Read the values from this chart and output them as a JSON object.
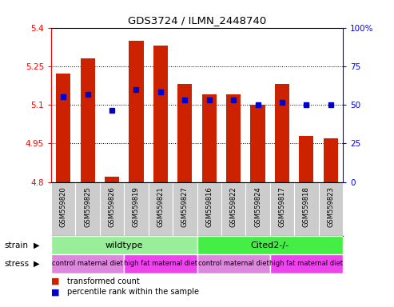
{
  "title": "GDS3724 / ILMN_2448740",
  "samples": [
    "GSM559820",
    "GSM559825",
    "GSM559826",
    "GSM559819",
    "GSM559821",
    "GSM559827",
    "GSM559816",
    "GSM559822",
    "GSM559824",
    "GSM559817",
    "GSM559818",
    "GSM559823"
  ],
  "bar_values": [
    5.22,
    5.28,
    4.82,
    5.35,
    5.33,
    5.18,
    5.14,
    5.14,
    5.1,
    5.18,
    4.98,
    4.97
  ],
  "percentile_values": [
    5.13,
    5.14,
    5.08,
    5.16,
    5.15,
    5.12,
    5.12,
    5.12,
    5.1,
    5.11,
    5.1,
    5.1
  ],
  "ylim": [
    4.8,
    5.4
  ],
  "y2lim": [
    0,
    100
  ],
  "yticks": [
    4.8,
    4.95,
    5.1,
    5.25,
    5.4
  ],
  "y2ticks": [
    0,
    25,
    50,
    75,
    100
  ],
  "bar_color": "#cc2200",
  "percentile_color": "#0000cc",
  "strain_labels": [
    {
      "label": "wildtype",
      "start": 0,
      "end": 6,
      "color": "#99ee99"
    },
    {
      "label": "Cited2-/-",
      "start": 6,
      "end": 12,
      "color": "#44ee44"
    }
  ],
  "stress_groups": [
    {
      "label": "control maternal diet",
      "start": 0,
      "end": 3,
      "color": "#dd88dd"
    },
    {
      "label": "high fat maternal diet",
      "start": 3,
      "end": 6,
      "color": "#ee44ee"
    },
    {
      "label": "control maternal diet",
      "start": 6,
      "end": 9,
      "color": "#dd88dd"
    },
    {
      "label": "high fat maternal diet",
      "start": 9,
      "end": 12,
      "color": "#ee44ee"
    }
  ],
  "grid_yticks": [
    4.95,
    5.1,
    5.25
  ],
  "background_color": "#ffffff",
  "sample_bg_color": "#cccccc",
  "bar_width": 0.6
}
